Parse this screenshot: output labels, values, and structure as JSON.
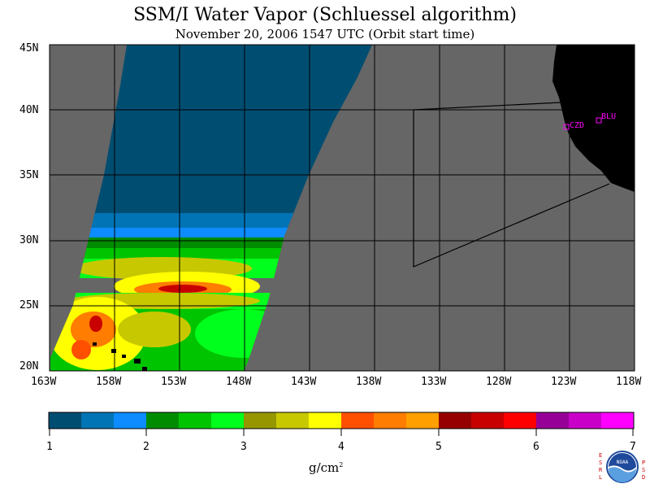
{
  "title": "SSM/I Water Vapor (Schluessel algorithm)",
  "subtitle": "November 20, 2006  1547 UTC  (Orbit start time)",
  "lat_labels": [
    "45N",
    "40N",
    "35N",
    "30N",
    "25N",
    "20N"
  ],
  "lon_labels": [
    "163W",
    "158W",
    "153W",
    "148W",
    "143W",
    "138W",
    "133W",
    "128W",
    "123W",
    "118W"
  ],
  "stations": [
    "CZD",
    "BLU"
  ],
  "colorbar": {
    "colors": [
      "#004d72",
      "#0074b4",
      "#0d8cff",
      "#008c00",
      "#00c400",
      "#00ff1d",
      "#969600",
      "#c8c800",
      "#ffff00",
      "#ff4f00",
      "#ff7d00",
      "#ffa000",
      "#960000",
      "#c80000",
      "#ff0000",
      "#960096",
      "#c800c8",
      "#ff00ff"
    ],
    "tick_labels": [
      "1",
      "2",
      "3",
      "4",
      "5",
      "6",
      "7"
    ]
  },
  "units": "g/cm",
  "units_sup": "2",
  "logo_letters_left": [
    "E",
    "S",
    "R",
    "L"
  ],
  "logo_letters_right": [
    "P",
    "S",
    "D"
  ],
  "logo_text": "NOAA",
  "colors": {
    "ocean_nodata": "#666666",
    "land": "#000000",
    "station": "#ff00ff"
  }
}
